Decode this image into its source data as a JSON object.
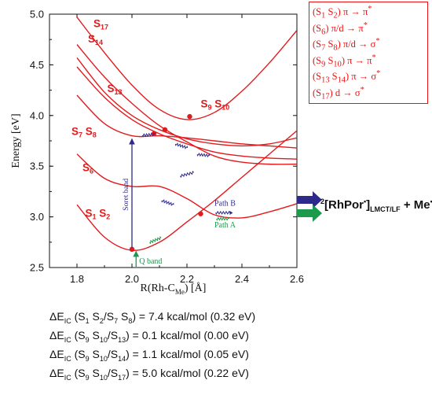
{
  "chart_data": {
    "type": "line",
    "xlabel": "R(Rh-C",
    "xlabel_sub": "Me",
    "xlabel_tail": ") [Å]",
    "ylabel": "Energy [eV]",
    "xlim": [
      1.7,
      2.6
    ],
    "ylim": [
      2.5,
      5.0
    ],
    "xticks": [
      "1.8",
      "2.0",
      "2.2",
      "2.4",
      "2.6"
    ],
    "yticks": [
      "2.5",
      "3.0",
      "3.5",
      "4.0",
      "4.5",
      "5.0"
    ],
    "grid": false,
    "color": "#e31a1c",
    "series": [
      {
        "name": "S1 S2",
        "x": [
          1.8,
          1.9,
          2.0,
          2.1,
          2.2,
          2.3,
          2.4,
          2.5,
          2.6
        ],
        "y": [
          3.12,
          2.8,
          2.67,
          2.75,
          2.95,
          3.16,
          3.39,
          3.62,
          3.85
        ]
      },
      {
        "name": "S6",
        "x": [
          1.8,
          1.9,
          2.0,
          2.1,
          2.2,
          2.3,
          2.4,
          2.5,
          2.6
        ],
        "y": [
          3.62,
          3.38,
          3.3,
          3.3,
          3.18,
          3.02,
          2.99,
          3.05,
          3.13
        ]
      },
      {
        "name": "S7 S8",
        "x": [
          1.8,
          1.9,
          2.0,
          2.1,
          2.2,
          2.3,
          2.4,
          2.5,
          2.6
        ],
        "y": [
          4.2,
          3.92,
          3.8,
          3.8,
          3.78,
          3.75,
          3.72,
          3.7,
          3.68
        ]
      },
      {
        "name": "S9 S10",
        "x": [
          1.8,
          1.9,
          2.0,
          2.1,
          2.2,
          2.3,
          2.4,
          2.5,
          2.6
        ],
        "y": [
          4.57,
          4.23,
          4.0,
          3.86,
          3.77,
          3.72,
          3.7,
          3.72,
          3.78
        ]
      },
      {
        "name": "S13",
        "x": [
          1.8,
          1.9,
          2.0,
          2.1,
          2.2,
          2.3,
          2.4,
          2.5,
          2.6
        ],
        "y": [
          4.48,
          4.18,
          3.96,
          3.82,
          3.72,
          3.64,
          3.6,
          3.58,
          3.57
        ]
      },
      {
        "name": "S14",
        "x": [
          1.8,
          1.9,
          2.0,
          2.1,
          2.2,
          2.3,
          2.4,
          2.5,
          2.6
        ],
        "y": [
          4.7,
          4.38,
          4.12,
          3.9,
          3.74,
          3.6,
          3.54,
          3.52,
          3.52
        ]
      },
      {
        "name": "S17",
        "x": [
          1.8,
          1.9,
          2.0,
          2.1,
          2.2,
          2.3,
          2.4,
          2.5,
          2.6
        ],
        "y": [
          4.97,
          4.62,
          4.3,
          4.06,
          3.96,
          4.03,
          4.24,
          4.52,
          4.84
        ]
      }
    ],
    "crossing_points": [
      {
        "x": 2.0,
        "y": 2.68
      },
      {
        "x": 2.25,
        "y": 3.03
      },
      {
        "x": 2.08,
        "y": 3.82
      },
      {
        "x": 2.12,
        "y": 3.86
      },
      {
        "x": 2.21,
        "y": 3.99
      }
    ],
    "state_labels": [
      {
        "main": "S",
        "sub": "17",
        "x": 1.86,
        "y": 4.87
      },
      {
        "main": "S",
        "sub": "14",
        "x": 1.84,
        "y": 4.72
      },
      {
        "main": "S",
        "sub": "13",
        "x": 1.91,
        "y": 4.23
      },
      {
        "main": "S",
        "sub": "7",
        "main2": " S",
        "sub2": "8",
        "x": 1.78,
        "y": 3.81
      },
      {
        "main": "S",
        "sub": "6",
        "x": 1.82,
        "y": 3.45
      },
      {
        "main": "S",
        "sub": "1",
        "main2": " S",
        "sub2": "2",
        "x": 1.83,
        "y": 3.0
      },
      {
        "main": "S",
        "sub": "9",
        "main2": " S",
        "sub2": "10",
        "x": 2.25,
        "y": 4.08
      }
    ],
    "arrow_labels": {
      "soret": "Soret band",
      "q": "Q band",
      "path_b": "Path B",
      "path_a": "Path A"
    }
  },
  "legend": [
    {
      "main": "(S",
      "s1": "1",
      "mid": " S",
      "s2": "2",
      "tail": ") π → π",
      "sup": "*"
    },
    {
      "main": "(S",
      "s1": "6",
      "mid": "",
      "s2": "",
      "tail": ") π/d → π",
      "sup": "*"
    },
    {
      "main": "(S",
      "s1": "7",
      "mid": " S",
      "s2": "8",
      "tail": ") π/d → σ",
      "sup": "*"
    },
    {
      "main": "(S",
      "s1": "9",
      "mid": " S",
      "s2": "10",
      "tail": ") π → π",
      "sup": "*"
    },
    {
      "main": "(S",
      "s1": "13",
      "mid": " S",
      "s2": "14",
      "tail": ") π → σ",
      "sup": "*"
    },
    {
      "main": "(S",
      "s1": "17",
      "mid": "",
      "s2": "",
      "tail": ") d → σ",
      "sup": "*"
    }
  ],
  "product": {
    "sup_left": "2",
    "main": "[RhPor",
    "sup_mid": "•",
    "main2": "]",
    "sub": "LMCT/LF",
    "plus": " + Me",
    "sup_end": "•"
  },
  "colors": {
    "curve": "#e31a1c",
    "soret": "#2e2a8c",
    "q": "#1a9a4a",
    "text": "#111111"
  },
  "delta_e": [
    {
      "prefix": "ΔE",
      "sub": "IC",
      "mid1": " (S",
      "s1": "1",
      "mid2": " S",
      "s2": "2",
      "mid3": "/S",
      "s3": "7",
      "mid4": " S",
      "s4": "8",
      "tail": ") = 7.4 kcal/mol (0.32 eV)"
    },
    {
      "prefix": "ΔE",
      "sub": "IC",
      "mid1": " (S",
      "s1": "9",
      "mid2": " S",
      "s2": "10",
      "mid3": "/S",
      "s3": "13",
      "mid4": "",
      "s4": "",
      "tail": ")   = 0.1 kcal/mol (0.00 eV)"
    },
    {
      "prefix": "ΔE",
      "sub": "IC",
      "mid1": " (S",
      "s1": "9",
      "mid2": " S",
      "s2": "10",
      "mid3": "/S",
      "s3": "14",
      "mid4": "",
      "s4": "",
      "tail": ")   = 1.1 kcal/mol (0.05 eV)"
    },
    {
      "prefix": "ΔE",
      "sub": "IC",
      "mid1": " (S",
      "s1": "9",
      "mid2": " S",
      "s2": "10",
      "mid3": "/S",
      "s3": "17",
      "mid4": "",
      "s4": "",
      "tail": ")   = 5.0 kcal/mol (0.22 eV)"
    }
  ]
}
